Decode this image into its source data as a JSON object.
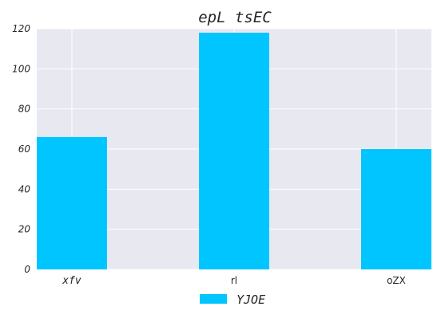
{
  "chart_data": {
    "type": "bar",
    "title": "epL tsEC",
    "xlabel": "",
    "ylabel": "",
    "categories": [
      "xfv",
      "rl",
      "oZX"
    ],
    "series": [
      {
        "name": "YJOE",
        "values": [
          66,
          118,
          60
        ],
        "color": "#00c5ff"
      }
    ],
    "ylim": [
      0,
      120
    ],
    "yticks": [
      0,
      20,
      40,
      60,
      80,
      100,
      120
    ],
    "grid": true,
    "legend_position": "bottom-center",
    "background_color": "#e8e8f0",
    "grid_color": "#ffffff"
  }
}
